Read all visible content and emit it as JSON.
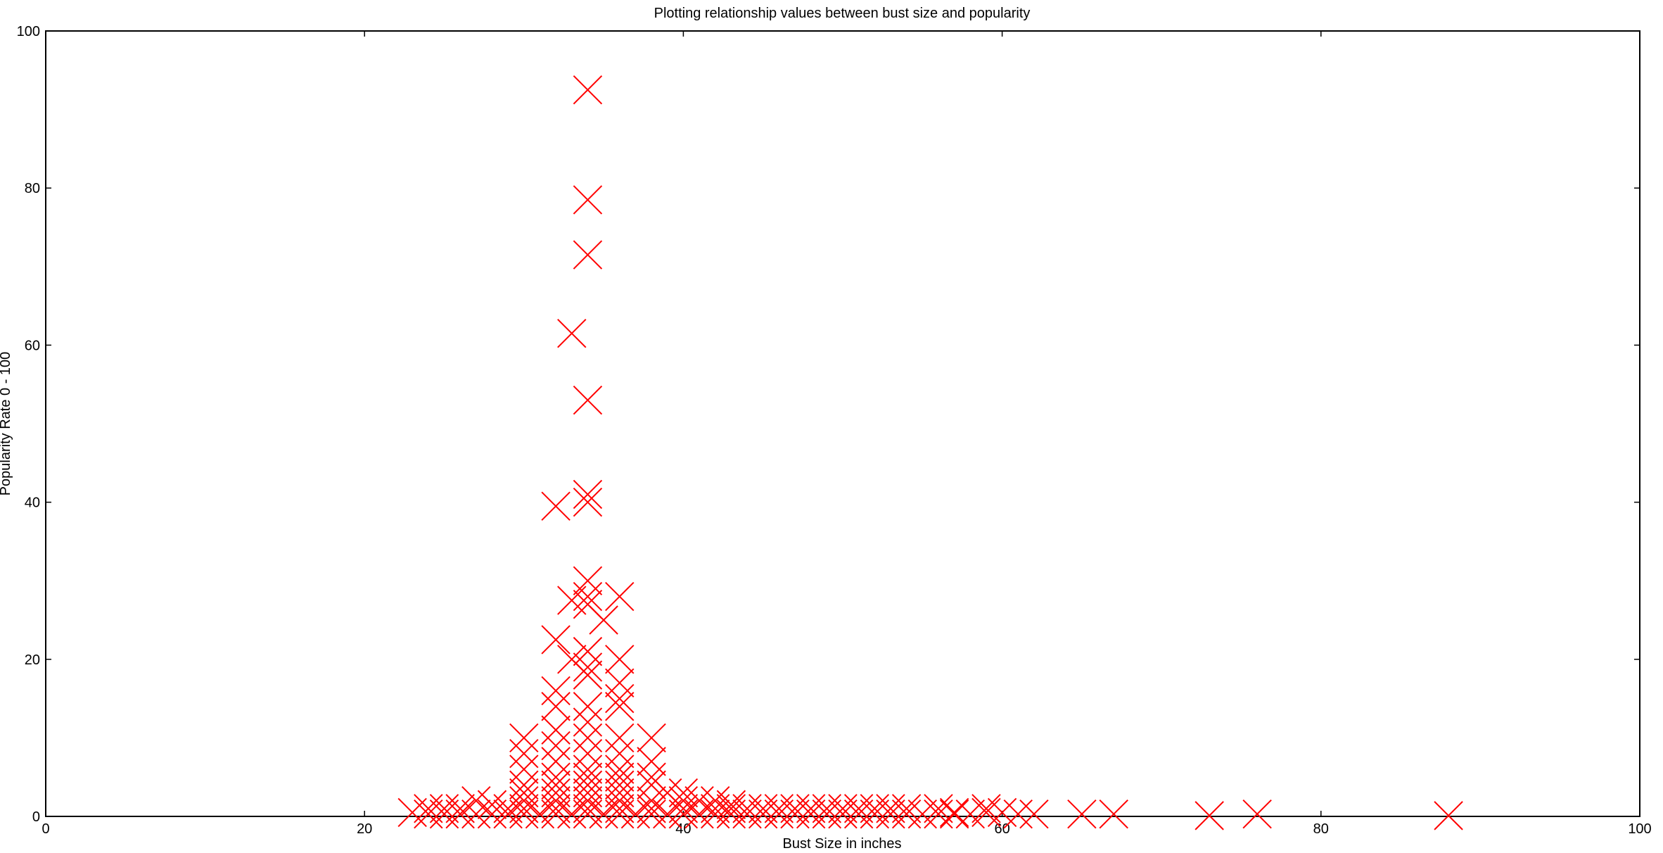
{
  "chart_data": {
    "type": "scatter",
    "title": "Plotting relationship values between bust size and popularity",
    "xlabel": "Bust Size in inches",
    "ylabel": "Popularity Rate 0 - 100",
    "xlim": [
      0,
      100
    ],
    "ylim": [
      0,
      100
    ],
    "xticks": [
      "0",
      "20",
      "40",
      "60",
      "80",
      "100"
    ],
    "yticks": [
      "0",
      "20",
      "40",
      "60",
      "80",
      "100"
    ],
    "grid": false,
    "legend": "none",
    "marker": "x",
    "color": "#ff0000",
    "series": [
      {
        "points": [
          [
            34,
            92.5
          ],
          [
            34,
            78.5
          ],
          [
            34,
            71.5
          ],
          [
            33,
            61.5
          ],
          [
            34,
            53
          ],
          [
            32,
            39.5
          ],
          [
            34,
            41
          ],
          [
            34,
            40
          ],
          [
            34,
            30
          ],
          [
            34,
            28
          ],
          [
            34,
            27
          ],
          [
            33,
            27.5
          ],
          [
            36,
            28
          ],
          [
            35,
            25
          ],
          [
            32,
            22.5
          ],
          [
            33,
            20
          ],
          [
            36,
            20
          ],
          [
            34,
            21
          ],
          [
            34,
            19
          ],
          [
            34,
            18
          ],
          [
            32,
            16
          ],
          [
            32,
            14
          ],
          [
            36,
            17
          ],
          [
            36,
            15
          ],
          [
            36,
            14
          ],
          [
            34,
            14
          ],
          [
            34,
            12
          ],
          [
            38,
            10
          ],
          [
            30,
            10
          ],
          [
            30,
            8
          ],
          [
            30,
            6
          ],
          [
            32,
            11
          ],
          [
            32,
            9
          ],
          [
            32,
            7
          ],
          [
            34,
            10
          ],
          [
            34,
            8
          ],
          [
            34,
            6
          ],
          [
            36,
            10
          ],
          [
            36,
            8
          ],
          [
            36,
            6
          ],
          [
            38,
            7
          ],
          [
            38,
            5
          ],
          [
            38,
            4
          ],
          [
            39,
            3
          ],
          [
            40,
            3
          ],
          [
            30,
            4
          ],
          [
            30,
            3
          ],
          [
            30,
            2
          ],
          [
            32,
            5
          ],
          [
            32,
            4
          ],
          [
            32,
            3
          ],
          [
            32,
            2
          ],
          [
            34,
            5
          ],
          [
            34,
            4
          ],
          [
            34,
            3
          ],
          [
            34,
            2
          ],
          [
            36,
            5
          ],
          [
            36,
            4
          ],
          [
            36,
            3
          ],
          [
            36,
            2
          ],
          [
            38,
            2
          ],
          [
            40,
            2
          ],
          [
            41,
            2
          ],
          [
            42,
            2
          ],
          [
            43,
            1.5
          ],
          [
            30,
            1
          ],
          [
            32,
            1
          ],
          [
            34,
            1
          ],
          [
            36,
            1
          ],
          [
            38,
            1
          ],
          [
            40,
            1
          ],
          [
            24,
            1
          ],
          [
            25,
            1
          ],
          [
            26,
            1
          ],
          [
            27,
            2
          ],
          [
            28,
            1.5
          ],
          [
            29,
            1
          ],
          [
            42,
            1
          ],
          [
            43,
            1
          ],
          [
            44,
            1
          ],
          [
            45,
            1
          ],
          [
            46,
            1
          ],
          [
            47,
            1
          ],
          [
            48,
            1
          ],
          [
            49,
            1
          ],
          [
            50,
            1
          ],
          [
            51,
            1
          ],
          [
            52,
            1
          ],
          [
            53,
            1
          ],
          [
            54,
            1
          ],
          [
            23,
            0.5
          ],
          [
            24,
            0.3
          ],
          [
            25,
            0.3
          ],
          [
            26,
            0.3
          ],
          [
            27,
            0.3
          ],
          [
            28,
            0.3
          ],
          [
            29,
            0.3
          ],
          [
            30,
            0.3
          ],
          [
            31,
            0.3
          ],
          [
            32,
            0.3
          ],
          [
            33,
            0.3
          ],
          [
            34,
            0.3
          ],
          [
            35,
            0.3
          ],
          [
            36,
            0.3
          ],
          [
            37,
            0.3
          ],
          [
            38,
            0.3
          ],
          [
            39,
            0.3
          ],
          [
            40,
            0.3
          ],
          [
            41,
            0.3
          ],
          [
            42,
            0.3
          ],
          [
            43,
            0.3
          ],
          [
            44,
            0.3
          ],
          [
            45,
            0.3
          ],
          [
            46,
            0.3
          ],
          [
            47,
            0.3
          ],
          [
            48,
            0.3
          ],
          [
            49,
            0.3
          ],
          [
            50,
            0.3
          ],
          [
            51,
            0.3
          ],
          [
            52,
            0.3
          ],
          [
            53,
            0.3
          ],
          [
            54,
            0.3
          ],
          [
            55,
            0.3
          ],
          [
            56,
            0.3
          ],
          [
            57,
            0.3
          ],
          [
            58,
            0.3
          ],
          [
            59,
            0.5
          ],
          [
            60,
            0.5
          ],
          [
            61,
            0.3
          ],
          [
            62,
            0.3
          ],
          [
            65,
            0.3
          ],
          [
            67,
            0.3
          ],
          [
            73,
            0.1
          ],
          [
            76,
            0.3
          ],
          [
            88,
            0.1
          ],
          [
            56,
            1
          ],
          [
            57,
            0.5
          ],
          [
            59,
            1
          ]
        ]
      }
    ]
  }
}
